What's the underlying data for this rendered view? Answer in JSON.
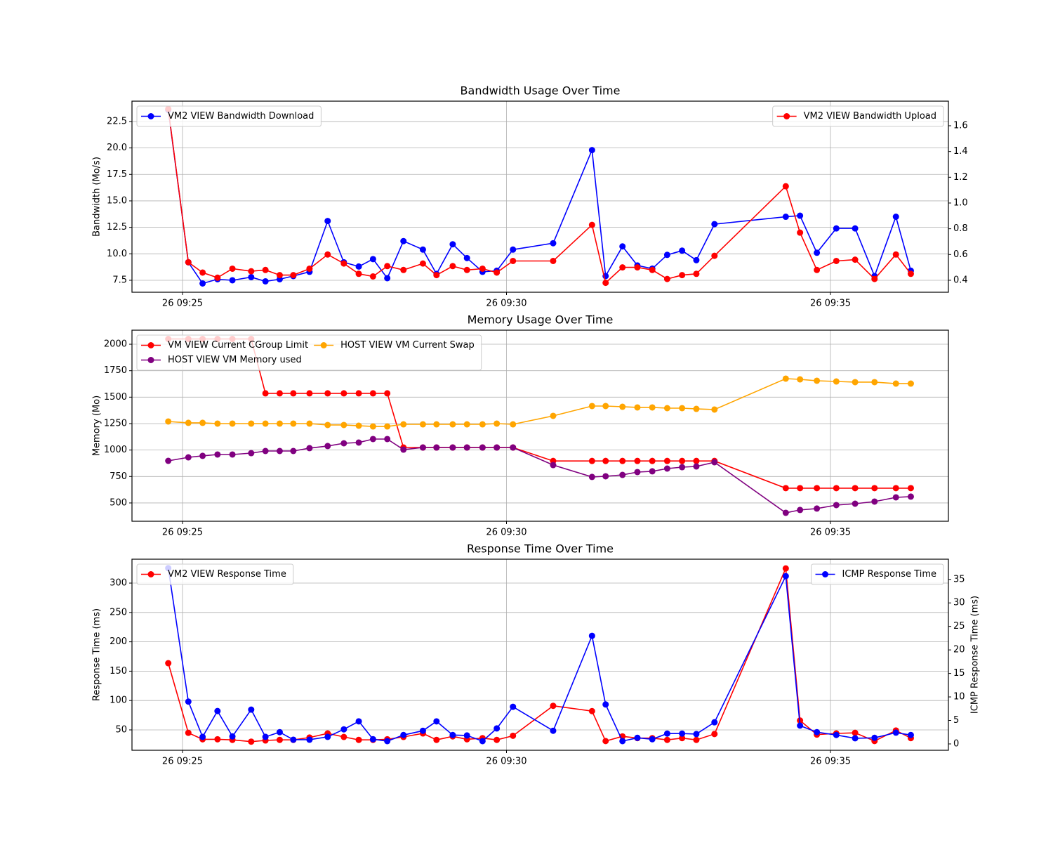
{
  "chart_data": [
    {
      "type": "line",
      "title": "Bandwidth Usage Over Time",
      "ylabel": "Bandwidth (Mo/s)",
      "x": [
        24.78,
        25.09,
        25.31,
        25.54,
        25.77,
        26.06,
        26.28,
        26.5,
        26.71,
        26.96,
        27.24,
        27.49,
        27.72,
        27.94,
        28.16,
        28.41,
        28.71,
        28.92,
        29.17,
        29.39,
        29.63,
        29.85,
        30.1,
        30.72,
        31.32,
        31.53,
        31.79,
        32.02,
        32.25,
        32.48,
        32.71,
        32.93,
        33.21,
        34.31,
        34.53,
        34.79,
        35.09,
        35.38,
        35.68,
        36.01,
        36.24
      ],
      "xlim": [
        24.22,
        36.82
      ],
      "xticks": [
        {
          "value": 25,
          "label": "26 09:25"
        },
        {
          "value": 30,
          "label": "26 09:30"
        },
        {
          "value": 35,
          "label": "26 09:35"
        }
      ],
      "ylim": [
        6.37,
        24.42
      ],
      "yticks": [
        7.5,
        {
          "value": 10,
          "label": "10.0"
        },
        12.5,
        {
          "value": 15,
          "label": "15.0"
        },
        17.5,
        {
          "value": 20,
          "label": "20.0"
        },
        22.5
      ],
      "y2lim": [
        0.307,
        1.791
      ],
      "y2ticks": [
        0.4,
        0.6,
        0.8,
        {
          "value": 1,
          "label": "1.0"
        },
        1.2,
        1.4,
        1.6
      ],
      "grid": true,
      "legend": "upper left",
      "legend2": "upper right",
      "series": [
        {
          "name": "VM2 VIEW Bandwidth Download",
          "color": "#0000ff",
          "axis": "y",
          "values": [
            23.6,
            9.2,
            7.2,
            7.6,
            7.5,
            7.8,
            7.4,
            7.6,
            7.9,
            8.3,
            13.1,
            9.2,
            8.8,
            9.5,
            7.7,
            11.2,
            10.4,
            8.1,
            10.9,
            9.6,
            8.3,
            8.4,
            10.4,
            11.0,
            19.8,
            7.9,
            10.7,
            8.9,
            8.6,
            9.9,
            10.3,
            9.4,
            12.8,
            13.5,
            13.6,
            10.1,
            12.4,
            12.4,
            7.9,
            13.5,
            8.4
          ]
        },
        {
          "name": "VM2 VIEW Bandwidth Upload",
          "color": "#ff0000",
          "axis": "y2",
          "values": [
            1.73,
            0.54,
            0.46,
            0.42,
            0.49,
            0.47,
            0.48,
            0.44,
            0.44,
            0.49,
            0.6,
            0.53,
            0.45,
            0.43,
            0.51,
            0.48,
            0.53,
            0.44,
            0.51,
            0.48,
            0.49,
            0.46,
            0.55,
            0.55,
            0.83,
            0.38,
            0.5,
            0.5,
            0.48,
            0.41,
            0.44,
            0.45,
            0.59,
            1.13,
            0.77,
            0.48,
            0.55,
            0.56,
            0.41,
            0.6,
            0.45
          ]
        }
      ]
    },
    {
      "type": "line",
      "title": "Memory Usage Over Time",
      "ylabel": "Memory (Mo)",
      "x": [
        24.78,
        25.09,
        25.31,
        25.54,
        25.77,
        26.06,
        26.28,
        26.5,
        26.71,
        26.96,
        27.24,
        27.49,
        27.72,
        27.94,
        28.16,
        28.41,
        28.71,
        28.92,
        29.17,
        29.39,
        29.63,
        29.85,
        30.1,
        30.72,
        31.32,
        31.53,
        31.79,
        32.02,
        32.25,
        32.48,
        32.71,
        32.93,
        33.21,
        34.31,
        34.53,
        34.79,
        35.09,
        35.38,
        35.68,
        36.01,
        36.24
      ],
      "xlim": [
        24.22,
        36.82
      ],
      "xticks": [
        {
          "value": 25,
          "label": "26 09:25"
        },
        {
          "value": 30,
          "label": "26 09:30"
        },
        {
          "value": 35,
          "label": "26 09:35"
        }
      ],
      "ylim": [
        327,
        2133
      ],
      "yticks": [
        500,
        750,
        1000,
        1250,
        1500,
        1750,
        2000
      ],
      "grid": true,
      "legend": "upper left",
      "legend_columns": 2,
      "series": [
        {
          "name": "VM VIEW Current CGroup Limit",
          "color": "#ff0000",
          "axis": "y",
          "values": [
            2050,
            2050,
            2050,
            2050,
            2050,
            2050,
            1536,
            1536,
            1536,
            1536,
            1536,
            1536,
            1536,
            1536,
            1536,
            1024,
            1024,
            1024,
            1024,
            1024,
            1024,
            1024,
            1024,
            897,
            897,
            897,
            897,
            897,
            897,
            897,
            897,
            897,
            897,
            640,
            640,
            640,
            640,
            640,
            640,
            640,
            640
          ]
        },
        {
          "name": "HOST VIEW VM Memory used",
          "color": "#800080",
          "axis": "y",
          "values": [
            898,
            931,
            945,
            958,
            958,
            971,
            991,
            991,
            991,
            1018,
            1038,
            1064,
            1071,
            1104,
            1104,
            1004,
            1024,
            1024,
            1024,
            1024,
            1024,
            1024,
            1024,
            858,
            746,
            752,
            765,
            792,
            799,
            825,
            838,
            845,
            885,
            407,
            434,
            447,
            480,
            493,
            513,
            553,
            560
          ]
        },
        {
          "name": "HOST VIEW VM Current Swap",
          "color": "#ffa500",
          "axis": "y",
          "values": [
            1270,
            1257,
            1257,
            1250,
            1250,
            1250,
            1250,
            1250,
            1250,
            1250,
            1237,
            1237,
            1230,
            1223,
            1223,
            1243,
            1243,
            1243,
            1243,
            1243,
            1243,
            1250,
            1243,
            1323,
            1416,
            1416,
            1409,
            1403,
            1403,
            1396,
            1396,
            1389,
            1383,
            1675,
            1668,
            1655,
            1648,
            1642,
            1642,
            1628,
            1628
          ]
        }
      ]
    },
    {
      "type": "line",
      "title": "Response Time Over Time",
      "ylabel": "Response Time (ms)",
      "y2label": "ICMP Response Time (ms)",
      "x": [
        24.78,
        25.09,
        25.31,
        25.54,
        25.77,
        26.06,
        26.28,
        26.5,
        26.71,
        26.96,
        27.24,
        27.49,
        27.72,
        27.94,
        28.16,
        28.41,
        28.71,
        28.92,
        29.17,
        29.39,
        29.63,
        29.85,
        30.1,
        30.72,
        31.32,
        31.53,
        31.79,
        32.02,
        32.25,
        32.48,
        32.71,
        32.93,
        33.21,
        34.31,
        34.53,
        34.79,
        35.09,
        35.38,
        35.68,
        36.01,
        36.24
      ],
      "xlim": [
        24.22,
        36.82
      ],
      "xticks": [
        {
          "value": 25,
          "label": "26 09:25"
        },
        {
          "value": 30,
          "label": "26 09:30"
        },
        {
          "value": 35,
          "label": "26 09:35"
        }
      ],
      "ylim": [
        15.3,
        340.7
      ],
      "yticks": [
        50,
        100,
        150,
        200,
        250,
        300
      ],
      "y2lim": [
        -1.35,
        39.3
      ],
      "y2ticks": [
        0,
        5,
        10,
        15,
        20,
        25,
        30,
        35
      ],
      "grid": true,
      "legend": "upper left",
      "legend2": "upper right",
      "series": [
        {
          "name": "VM2 VIEW Response Time",
          "color": "#ff0000",
          "axis": "y",
          "values": [
            163.6,
            45,
            34,
            34,
            33,
            30,
            32,
            33,
            33,
            37,
            44,
            38,
            33,
            33,
            34,
            38,
            44,
            33,
            39,
            34,
            36,
            33,
            40,
            91,
            82,
            31,
            39,
            36,
            36,
            33,
            36,
            33,
            43,
            325,
            66,
            42,
            44,
            45,
            31,
            49,
            36
          ]
        },
        {
          "name": "ICMP Response Time",
          "color": "#0000ff",
          "axis": "y2",
          "values": [
            37.4,
            9.0,
            1.5,
            7.0,
            1.6,
            7.3,
            1.5,
            2.5,
            0.9,
            0.9,
            1.5,
            3.1,
            4.8,
            1.0,
            0.6,
            1.9,
            2.8,
            4.8,
            1.9,
            1.8,
            0.6,
            3.3,
            7.9,
            2.8,
            23.0,
            8.4,
            0.6,
            1.3,
            1.0,
            2.2,
            2.2,
            2.1,
            4.6,
            35.7,
            3.9,
            2.5,
            1.9,
            1.2,
            1.3,
            2.4,
            1.9
          ]
        }
      ]
    }
  ]
}
